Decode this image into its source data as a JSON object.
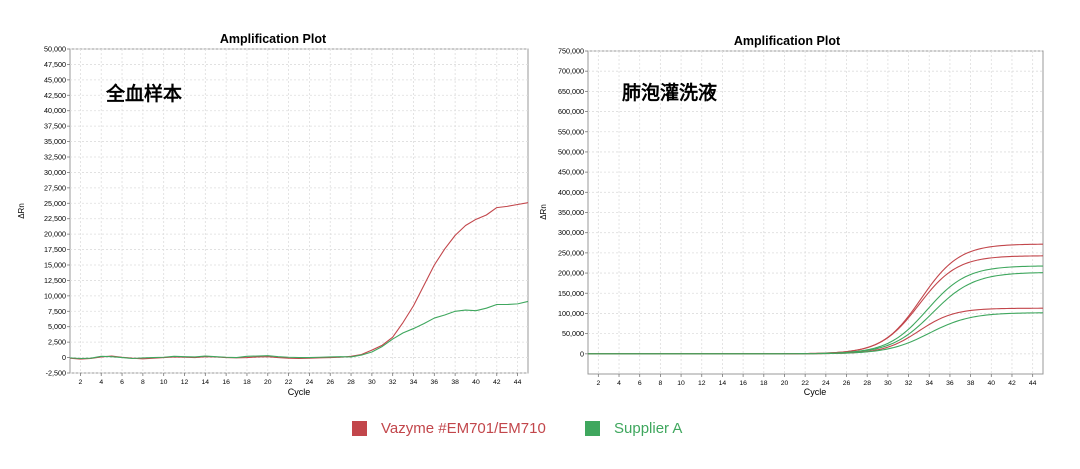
{
  "colors": {
    "vazyme": "#c2464b",
    "supplier": "#3fa75e"
  },
  "legend": {
    "vazyme": "Vazyme #EM701/EM710",
    "supplier": "Supplier A"
  },
  "chart_data": [
    {
      "type": "line",
      "title": "Amplification Plot",
      "annotation": "全血样本",
      "xlabel": "Cycle",
      "ylabel": "ΔRn",
      "xlim": [
        1,
        45
      ],
      "ylim": [
        -2500,
        50000
      ],
      "xticks": [
        2,
        4,
        6,
        8,
        10,
        12,
        14,
        16,
        18,
        20,
        22,
        24,
        26,
        28,
        30,
        32,
        34,
        36,
        38,
        40,
        42,
        44
      ],
      "yticks": [
        -2500,
        0,
        2500,
        5000,
        7500,
        10000,
        12500,
        15000,
        17500,
        20000,
        22500,
        25000,
        27500,
        30000,
        32500,
        35000,
        37500,
        40000,
        42500,
        45000,
        47500,
        50000
      ],
      "ytick_labels": [
        "-2,500",
        "0",
        "2,500",
        "5,000",
        "7,500",
        "10,000",
        "12,500",
        "15,000",
        "17,500",
        "20,000",
        "22,500",
        "25,000",
        "27,500",
        "30,000",
        "32,500",
        "35,000",
        "37,500",
        "40,000",
        "42,500",
        "45,000",
        "47,500",
        "50,000"
      ],
      "grid": true,
      "series": [
        {
          "color_key": "vazyme",
          "x": [
            1,
            2,
            3,
            4,
            5,
            6,
            7,
            8,
            9,
            10,
            11,
            12,
            13,
            14,
            15,
            16,
            17,
            18,
            19,
            20,
            21,
            22,
            23,
            24,
            25,
            26,
            27,
            28,
            29,
            30,
            31,
            32,
            33,
            34,
            35,
            36,
            37,
            38,
            39,
            40,
            41,
            42,
            43,
            44,
            45
          ],
          "y": [
            -100,
            -250,
            -150,
            100,
            250,
            50,
            -100,
            -200,
            -100,
            0,
            100,
            50,
            0,
            150,
            100,
            0,
            -50,
            0,
            100,
            150,
            0,
            -100,
            -150,
            -100,
            -50,
            0,
            50,
            200,
            500,
            1200,
            2000,
            3300,
            5700,
            8400,
            11700,
            15000,
            17600,
            19800,
            21400,
            22400,
            23100,
            24300,
            24500,
            24800,
            25100
          ]
        },
        {
          "color_key": "supplier",
          "x": [
            1,
            2,
            3,
            4,
            5,
            6,
            7,
            8,
            9,
            10,
            11,
            12,
            13,
            14,
            15,
            16,
            17,
            18,
            19,
            20,
            21,
            22,
            23,
            24,
            25,
            26,
            27,
            28,
            29,
            30,
            31,
            32,
            33,
            34,
            35,
            36,
            37,
            38,
            39,
            40,
            41,
            42,
            43,
            44,
            45
          ],
          "y": [
            -50,
            -150,
            -100,
            200,
            150,
            0,
            -150,
            -50,
            0,
            50,
            200,
            150,
            100,
            250,
            150,
            50,
            0,
            200,
            250,
            300,
            150,
            50,
            0,
            0,
            50,
            100,
            150,
            100,
            400,
            900,
            1800,
            3000,
            4000,
            4700,
            5500,
            6400,
            6900,
            7500,
            7700,
            7600,
            8000,
            8600,
            8600,
            8700,
            9100
          ]
        }
      ]
    },
    {
      "type": "line",
      "title": "Amplification Plot",
      "annotation": "肺泡灌洗液",
      "xlabel": "Cycle",
      "ylabel": "ΔRn",
      "xlim": [
        1,
        45
      ],
      "ylim": [
        -50000,
        750000
      ],
      "xticks": [
        2,
        4,
        6,
        8,
        10,
        12,
        14,
        16,
        18,
        20,
        22,
        24,
        26,
        28,
        30,
        32,
        34,
        36,
        38,
        40,
        42,
        44
      ],
      "yticks": [
        0,
        50000,
        100000,
        150000,
        200000,
        250000,
        300000,
        350000,
        400000,
        450000,
        500000,
        550000,
        600000,
        650000,
        700000,
        750000
      ],
      "ytick_labels": [
        "0",
        "50,000",
        "100,000",
        "150,000",
        "200,000",
        "250,000",
        "300,000",
        "350,000",
        "400,000",
        "450,000",
        "500,000",
        "550,000",
        "600,000",
        "650,000",
        "700,000",
        "750,000"
      ],
      "grid": true,
      "series": [
        {
          "color_key": "vazyme",
          "plateau": 272000,
          "midpoint": 33.2,
          "slope": 1.85
        },
        {
          "color_key": "vazyme",
          "plateau": 243000,
          "midpoint": 33.0,
          "slope": 1.85
        },
        {
          "color_key": "supplier",
          "plateau": 218000,
          "midpoint": 33.8,
          "slope": 1.9
        },
        {
          "color_key": "supplier",
          "plateau": 202000,
          "midpoint": 34.3,
          "slope": 2.0
        },
        {
          "color_key": "vazyme",
          "plateau": 113000,
          "midpoint": 33.0,
          "slope": 1.7
        },
        {
          "color_key": "supplier",
          "plateau": 102000,
          "midpoint": 34.0,
          "slope": 2.0
        }
      ]
    }
  ]
}
